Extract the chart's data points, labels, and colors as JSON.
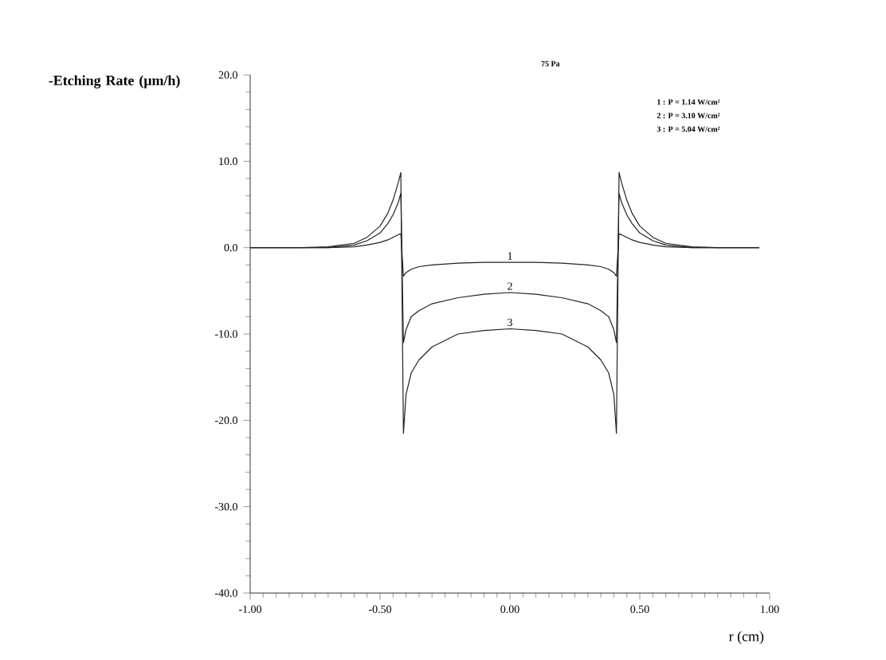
{
  "chart_data": {
    "type": "line",
    "xlabel": "r (cm)",
    "ylabel": "-Etching Rate (μm/h)",
    "xlim": [
      -1,
      1
    ],
    "ylim": [
      -40,
      20
    ],
    "xticks": [
      {
        "value": -1,
        "label": "-1.00"
      },
      {
        "value": -0.5,
        "label": "-0.50"
      },
      {
        "value": 0,
        "label": "0.00"
      },
      {
        "value": 0.5,
        "label": "0.50"
      },
      {
        "value": 1,
        "label": "1.00"
      }
    ],
    "yticks": [
      {
        "value": -40,
        "label": "-40.0"
      },
      {
        "value": -30,
        "label": "-30.0"
      },
      {
        "value": -20,
        "label": "-20.0"
      },
      {
        "value": -10,
        "label": "-10.0"
      },
      {
        "value": 0,
        "label": "0.0"
      },
      {
        "value": 10,
        "label": "10.0"
      },
      {
        "value": 20,
        "label": "20.0"
      }
    ],
    "grid": false,
    "legend": false,
    "marker": "none",
    "line_style": "solid",
    "x": [
      -1,
      -0.8,
      -0.7,
      -0.6,
      -0.55,
      -0.5,
      -0.47,
      -0.45,
      -0.43,
      -0.42,
      -0.41,
      -0.4,
      -0.38,
      -0.35,
      -0.3,
      -0.2,
      -0.1,
      0,
      0.1,
      0.2,
      0.3,
      0.35,
      0.38,
      0.4,
      0.41,
      0.42,
      0.43,
      0.45,
      0.47,
      0.5,
      0.55,
      0.6,
      0.7,
      0.8,
      0.96
    ],
    "series": [
      {
        "name": "1",
        "color": "#222222",
        "values": [
          0,
          0,
          0,
          0.1,
          0.3,
          0.6,
          0.9,
          1.2,
          1.5,
          1.6,
          -3.3,
          -2.9,
          -2.5,
          -2.2,
          -2,
          -1.8,
          -1.7,
          -1.7,
          -1.7,
          -1.8,
          -2,
          -2.2,
          -2.5,
          -2.9,
          -3.3,
          1.6,
          1.5,
          1.2,
          0.9,
          0.6,
          0.3,
          0.1,
          0,
          0,
          0
        ]
      },
      {
        "name": "2",
        "color": "#222222",
        "values": [
          0,
          0,
          0,
          0.3,
          0.8,
          1.7,
          2.8,
          3.8,
          5.2,
          6.3,
          -11,
          -9.5,
          -8,
          -7.3,
          -6.5,
          -5.8,
          -5.4,
          -5.2,
          -5.4,
          -5.8,
          -6.5,
          -7.3,
          -8,
          -9.5,
          -11,
          6.3,
          5.2,
          3.8,
          2.8,
          1.7,
          0.8,
          0.3,
          0,
          0,
          0
        ]
      },
      {
        "name": "3",
        "color": "#222222",
        "values": [
          0,
          0,
          0.1,
          0.5,
          1.2,
          2.5,
          4,
          5.5,
          7.5,
          8.7,
          -21.5,
          -17,
          -14.5,
          -13,
          -11.5,
          -10,
          -9.6,
          -9.4,
          -9.6,
          -10,
          -11.5,
          -13,
          -14.5,
          -17,
          -21.5,
          8.7,
          7.5,
          5.5,
          4,
          2.5,
          1.2,
          0.5,
          0.1,
          0,
          0
        ]
      }
    ],
    "annotations": [
      "75 Pa",
      "1 : P = 1.14 W/cm²",
      "2 : P = 3.10 W/cm²",
      "3 : P = 5.04 W/cm²"
    ]
  }
}
